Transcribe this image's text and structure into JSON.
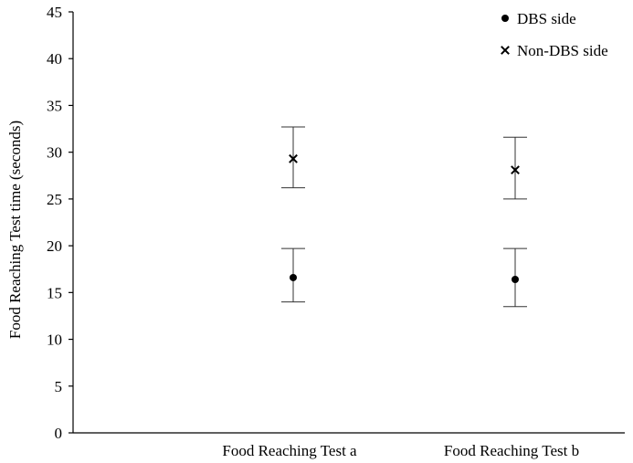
{
  "chart_data": {
    "type": "scatter",
    "title": "",
    "xlabel": "",
    "ylabel": "Food Reaching Test time (seconds)",
    "categories": [
      "Food Reaching Test a",
      "Food Reaching Test b"
    ],
    "ylim": [
      0,
      45
    ],
    "yticks": [
      0,
      5,
      10,
      15,
      20,
      25,
      30,
      35,
      40,
      45
    ],
    "grid": false,
    "legend_position": "top-right",
    "series": [
      {
        "name": "DBS side",
        "marker": "circle",
        "values": [
          16.6,
          16.4
        ],
        "error_low": [
          14.0,
          13.5
        ],
        "error_high": [
          19.7,
          19.7
        ]
      },
      {
        "name": "Non-DBS side",
        "marker": "x",
        "values": [
          29.3,
          28.1
        ],
        "error_low": [
          26.2,
          25.0
        ],
        "error_high": [
          32.7,
          31.6
        ]
      }
    ]
  },
  "colors": {
    "axis": "#000000",
    "marker": "#000000",
    "errorbar": "#333333"
  }
}
